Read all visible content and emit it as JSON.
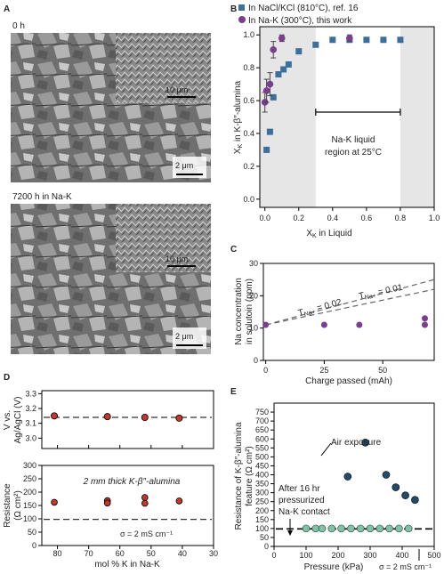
{
  "panel_letters": {
    "A": "A",
    "B": "B",
    "C": "C",
    "D": "D",
    "E": "E"
  },
  "micrographs": [
    {
      "label": "0 h",
      "scalebar_main": "2 μm",
      "scalebar_inset": "10 μm"
    },
    {
      "label": "7200 h in Na-K",
      "scalebar_main": "2 μm",
      "scalebar_inset": "10 μm"
    }
  ],
  "colors": {
    "blue_square": "#3d6f9c",
    "purple_circle": "#7b3d8f",
    "red_circle": "#c0392b",
    "teal_circle": "#7cc3a7",
    "dark_blue_circle": "#234a6a",
    "shade": "#e6e6e6",
    "dash": "#666666"
  },
  "chart_data": [
    {
      "panel": "B",
      "type": "scatter",
      "xlabel": "X_K in Liquid",
      "ylabel": "X_K in K-β″-alumina",
      "xlim": [
        -0.03,
        1.0
      ],
      "ylim": [
        -0.05,
        1.05
      ],
      "x_ticks": [
        "0.0",
        "0.2",
        "0.4",
        "0.6",
        "0.8",
        "1.0"
      ],
      "y_ticks": [
        "0.0",
        "0.2",
        "0.4",
        "0.6",
        "0.8",
        "1.0"
      ],
      "shaded_regions_x": [
        [
          -0.03,
          0.3
        ],
        [
          0.8,
          1.0
        ]
      ],
      "annotation": {
        "text_line1": "Na-K liquid",
        "text_line2": "region at 25°C",
        "range": [
          0.3,
          0.8
        ],
        "y": 0.53
      },
      "legend_position": "top-left",
      "series": [
        {
          "name": "In NaCl/KCl (810°C), ref. 16",
          "marker": "square",
          "points": [
            [
              0.01,
              0.3
            ],
            [
              0.03,
              0.41
            ],
            [
              0.05,
              0.62
            ],
            [
              0.08,
              0.76
            ],
            [
              0.11,
              0.79
            ],
            [
              0.14,
              0.82
            ],
            [
              0.2,
              0.9
            ],
            [
              0.3,
              0.94
            ],
            [
              0.4,
              0.97
            ],
            [
              0.5,
              0.97
            ],
            [
              0.6,
              0.97
            ],
            [
              0.7,
              0.97
            ],
            [
              0.8,
              0.97
            ]
          ]
        },
        {
          "name": "In Na-K (300°C), this work",
          "marker": "circle",
          "points": [
            [
              0.0,
              0.59
            ],
            [
              0.01,
              0.66
            ],
            [
              0.03,
              0.7
            ],
            [
              0.05,
              0.91
            ],
            [
              0.1,
              0.98
            ],
            [
              0.5,
              0.98
            ]
          ],
          "errors": [
            0.06,
            0.07,
            0.07,
            0.05,
            0.02,
            0.02
          ]
        }
      ]
    },
    {
      "panel": "C",
      "type": "scatter",
      "xlabel": "Charge passed (mAh)",
      "ylabel_line1": "Na concentration",
      "ylabel_line2": "in solutoin (ppm)",
      "xlim": [
        -1,
        72
      ],
      "ylim": [
        0,
        30
      ],
      "x_ticks": [
        "0",
        "25",
        "50",
        "75"
      ],
      "y_ticks": [
        "0",
        "10",
        "20",
        "30"
      ],
      "reference_lines": [
        {
          "label": "T_Na+ = 0.02",
          "label_sub": "Na+",
          "label_prefix": "T",
          "label_suffix": " = 0.02",
          "from": [
            0,
            11
          ],
          "to": [
            72,
            25
          ]
        },
        {
          "label": "T_Na+ = 0.01",
          "label_sub": "Na+",
          "label_prefix": "T",
          "label_suffix": " = 0.01",
          "from": [
            0,
            11
          ],
          "to": [
            72,
            22
          ]
        }
      ],
      "points": [
        [
          0,
          11
        ],
        [
          25,
          11
        ],
        [
          40,
          11
        ],
        [
          68,
          11
        ],
        [
          68,
          13
        ]
      ]
    },
    {
      "panel": "D_top",
      "type": "scatter",
      "ylabel_line1": "V vs.",
      "ylabel_line2": "Ag/AgCl (V)",
      "xlim": [
        85,
        30
      ],
      "ylim": [
        2.93,
        3.32
      ],
      "y_ticks": [
        "2.9",
        "3.0",
        "3.1",
        "3.2",
        "3.3"
      ],
      "dashed_line_y": 3.14,
      "points": [
        [
          81,
          3.15
        ],
        [
          64,
          3.145
        ],
        [
          52,
          3.14
        ],
        [
          41,
          3.135
        ]
      ]
    },
    {
      "panel": "D_bottom",
      "type": "scatter",
      "ylabel_line1": "Resistance",
      "ylabel_line2": "(Ω cm²)",
      "xlabel": "mol % K in Na-K",
      "xlim": [
        85,
        30
      ],
      "ylim": [
        0,
        300
      ],
      "x_ticks": [
        "80",
        "70",
        "60",
        "50",
        "40",
        "30"
      ],
      "y_ticks": [
        "0",
        "50",
        "100",
        "150",
        "200",
        "250",
        "300"
      ],
      "dashed_line_y": 98,
      "annotation": "2 mm thick K-β″-alumina",
      "sigma_label": "σ = 2 mS cm⁻¹",
      "points": [
        [
          81,
          162
        ],
        [
          64,
          168
        ],
        [
          64,
          159
        ],
        [
          52,
          180
        ],
        [
          52,
          158
        ],
        [
          41,
          167
        ]
      ]
    },
    {
      "panel": "E",
      "type": "scatter",
      "xlabel": "Pressure (kPa)",
      "ylabel_line1": "Resistance of K-β″-alumina",
      "ylabel_line2": "feature (Ω cm²)",
      "xlim": [
        0,
        500
      ],
      "ylim": [
        0,
        800
      ],
      "x_ticks": [
        "0",
        "100",
        "200",
        "300",
        "400",
        "500"
      ],
      "y_ticks": [
        "0",
        "50",
        "100",
        "150",
        "200",
        "250",
        "300",
        "350",
        "400",
        "450",
        "500",
        "550",
        "600",
        "650",
        "700",
        "750"
      ],
      "dashed_line_y": 98,
      "annotations": {
        "air": "Air exposure",
        "after1": "After 16 hr",
        "after2": "pressurized",
        "after3": "Na-K contact",
        "sigma": "σ = 2 mS cm⁻¹"
      },
      "series": [
        {
          "name": "Air exposure",
          "points": [
            [
              230,
              390
            ],
            [
              285,
              580
            ],
            [
              350,
              400
            ],
            [
              380,
              330
            ],
            [
              410,
              285
            ],
            [
              440,
              260
            ]
          ]
        },
        {
          "name": "After 16 hr pressurized Na-K contact",
          "points": [
            [
              100,
              100
            ],
            [
              130,
              100
            ],
            [
              150,
              100
            ],
            [
              180,
              100
            ],
            [
              210,
              100
            ],
            [
              240,
              100
            ],
            [
              270,
              100
            ],
            [
              300,
              100
            ],
            [
              330,
              100
            ],
            [
              360,
              100
            ],
            [
              390,
              100
            ],
            [
              420,
              100
            ]
          ]
        }
      ]
    }
  ]
}
